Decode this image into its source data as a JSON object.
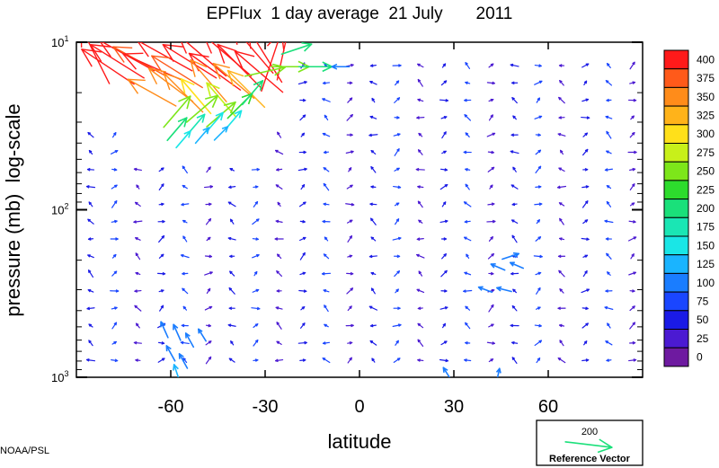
{
  "chart_data": {
    "type": "vector-field",
    "title": "EPFlux  1 day average  21 July       2011",
    "xlabel": "latitude",
    "ylabel": "pressure (mb)  log-scale",
    "xlim": [
      -90,
      90
    ],
    "ylim": [
      1000,
      10
    ],
    "yscale": "log",
    "x_ticks": [
      -60,
      -30,
      0,
      30,
      60
    ],
    "x_tick_labels": [
      "-60",
      "-30",
      "0",
      "30",
      "60"
    ],
    "y_ticks": [
      {
        "value": 10,
        "base": "10",
        "exp": "1"
      },
      {
        "value": 100,
        "base": "10",
        "exp": "2"
      },
      {
        "value": 1000,
        "base": "10",
        "exp": "3"
      }
    ],
    "colorbar": {
      "levels": [
        "400",
        "375",
        "350",
        "325",
        "300",
        "275",
        "250",
        "225",
        "200",
        "175",
        "150",
        "125",
        "100",
        "75",
        "50",
        "25",
        "0"
      ],
      "colors": [
        "#ff1a1a",
        "#ff5a1a",
        "#ff8c1a",
        "#ffb31a",
        "#ffe01a",
        "#c8f01a",
        "#7de61a",
        "#2ddc2d",
        "#1ae07a",
        "#1ae6b4",
        "#1ae6e6",
        "#1ab4ff",
        "#1a7dff",
        "#1a46ff",
        "#1a1ae6",
        "#4b1ad2",
        "#6e1aa0"
      ]
    },
    "vectors": [
      {
        "lat": -84,
        "p": 12,
        "u": -0.4,
        "v": 0.8,
        "mag": 400
      },
      {
        "lat": -80,
        "p": 14,
        "u": -0.9,
        "v": 0.6,
        "mag": 400
      },
      {
        "lat": -77,
        "p": 13,
        "u": -0.8,
        "v": 0.5,
        "mag": 400
      },
      {
        "lat": -74,
        "p": 12,
        "u": -0.9,
        "v": 0.5,
        "mag": 400
      },
      {
        "lat": -70,
        "p": 13,
        "u": -0.9,
        "v": 0.5,
        "mag": 380
      },
      {
        "lat": -66,
        "p": 14,
        "u": -0.9,
        "v": 0.4,
        "mag": 400
      },
      {
        "lat": -62,
        "p": 12,
        "u": -0.9,
        "v": 0.5,
        "mag": 400
      },
      {
        "lat": -58,
        "p": 15,
        "u": -0.8,
        "v": 0.5,
        "mag": 380
      },
      {
        "lat": -54,
        "p": 13,
        "u": -0.8,
        "v": 0.5,
        "mag": 400
      },
      {
        "lat": -50,
        "p": 12,
        "u": -0.7,
        "v": 0.6,
        "mag": 400
      },
      {
        "lat": -46,
        "p": 15,
        "u": -0.7,
        "v": 0.5,
        "mag": 400
      },
      {
        "lat": -42,
        "p": 12,
        "u": -0.7,
        "v": 0.6,
        "mag": 400
      },
      {
        "lat": -38,
        "p": 14,
        "u": -0.6,
        "v": 0.6,
        "mag": 400
      },
      {
        "lat": -34,
        "p": 11,
        "u": -0.6,
        "v": 0.7,
        "mag": 400
      },
      {
        "lat": -32,
        "p": 15,
        "u": -0.7,
        "v": 0.6,
        "mag": 400
      },
      {
        "lat": -30,
        "p": 12,
        "u": -0.5,
        "v": 0.8,
        "mag": 400
      },
      {
        "lat": -28,
        "p": 13,
        "u": 0.3,
        "v": 0.9,
        "mag": 400
      },
      {
        "lat": -24,
        "p": 11,
        "u": 0.2,
        "v": 0.9,
        "mag": 400
      },
      {
        "lat": -60,
        "p": 18,
        "u": -0.8,
        "v": 0.6,
        "mag": 350
      },
      {
        "lat": -66,
        "p": 20,
        "u": -0.9,
        "v": 0.5,
        "mag": 350
      },
      {
        "lat": -56,
        "p": 20,
        "u": -0.7,
        "v": 0.7,
        "mag": 350
      },
      {
        "lat": -48,
        "p": 17,
        "u": -0.6,
        "v": 0.7,
        "mag": 350
      },
      {
        "lat": -40,
        "p": 17,
        "u": -0.7,
        "v": 0.6,
        "mag": 340
      },
      {
        "lat": -36,
        "p": 19,
        "u": -0.6,
        "v": 0.6,
        "mag": 330
      },
      {
        "lat": -52,
        "p": 21,
        "u": -0.6,
        "v": 0.7,
        "mag": 290
      },
      {
        "lat": -44,
        "p": 22,
        "u": -0.6,
        "v": 0.7,
        "mag": 280
      },
      {
        "lat": -30,
        "p": 15,
        "u": 0.9,
        "v": 0.2,
        "mag": 260
      },
      {
        "lat": -22,
        "p": 14,
        "u": 0.9,
        "v": 0.0,
        "mag": 240
      },
      {
        "lat": -14,
        "p": 14,
        "u": 0.9,
        "v": 0.0,
        "mag": 210
      },
      {
        "lat": -20,
        "p": 11,
        "u": 0.9,
        "v": 0.3,
        "mag": 200
      },
      {
        "lat": -6,
        "p": 14,
        "u": -0.9,
        "v": 0.0,
        "mag": 110
      },
      {
        "lat": -58,
        "p": 26,
        "u": 0.6,
        "v": 0.7,
        "mag": 260
      },
      {
        "lat": -50,
        "p": 25,
        "u": 0.7,
        "v": 0.6,
        "mag": 260
      },
      {
        "lat": -44,
        "p": 27,
        "u": 0.7,
        "v": 0.6,
        "mag": 240
      },
      {
        "lat": -38,
        "p": 24,
        "u": 0.6,
        "v": 0.6,
        "mag": 220
      },
      {
        "lat": -34,
        "p": 20,
        "u": 0.6,
        "v": 0.7,
        "mag": 200
      },
      {
        "lat": -58,
        "p": 33,
        "u": 0.6,
        "v": 0.7,
        "mag": 190
      },
      {
        "lat": -52,
        "p": 31,
        "u": 0.6,
        "v": 0.7,
        "mag": 170
      },
      {
        "lat": -46,
        "p": 30,
        "u": 0.6,
        "v": 0.7,
        "mag": 160
      },
      {
        "lat": -40,
        "p": 29,
        "u": 0.6,
        "v": 0.7,
        "mag": 150
      },
      {
        "lat": -56,
        "p": 38,
        "u": 0.6,
        "v": 0.7,
        "mag": 140
      },
      {
        "lat": -50,
        "p": 36,
        "u": 0.6,
        "v": 0.7,
        "mag": 130
      },
      {
        "lat": -44,
        "p": 35,
        "u": 0.6,
        "v": 0.6,
        "mag": 120
      },
      {
        "lat": 48,
        "p": 190,
        "u": 0.9,
        "v": 0.3,
        "mag": 110
      },
      {
        "lat": 44,
        "p": 220,
        "u": -0.7,
        "v": 0.3,
        "mag": 95
      },
      {
        "lat": 50,
        "p": 215,
        "u": -0.7,
        "v": 0.3,
        "mag": 90
      },
      {
        "lat": 40,
        "p": 300,
        "u": -0.8,
        "v": 0.3,
        "mag": 90
      },
      {
        "lat": 46,
        "p": 300,
        "u": -0.8,
        "v": 0.2,
        "mag": 95
      },
      {
        "lat": -62,
        "p": 520,
        "u": -0.4,
        "v": 0.9,
        "mag": 110
      },
      {
        "lat": -58,
        "p": 540,
        "u": -0.4,
        "v": 0.9,
        "mag": 110
      },
      {
        "lat": -54,
        "p": 600,
        "u": -0.5,
        "v": 0.9,
        "mag": 100
      },
      {
        "lat": -50,
        "p": 560,
        "u": -0.5,
        "v": 0.8,
        "mag": 90
      },
      {
        "lat": -60,
        "p": 720,
        "u": -0.5,
        "v": 0.9,
        "mag": 110
      },
      {
        "lat": -56,
        "p": 800,
        "u": -0.5,
        "v": 0.9,
        "mag": 105
      },
      {
        "lat": -58,
        "p": 950,
        "u": -0.3,
        "v": 0.9,
        "mag": 120
      },
      {
        "lat": 28,
        "p": 960,
        "u": -0.5,
        "v": 0.8,
        "mag": 100
      },
      {
        "lat": 44,
        "p": 980,
        "u": 0.2,
        "v": 0.9,
        "mag": 95
      }
    ],
    "background_vectors": "small blue vectors (~25-75) on a regular lat-pressure grid covering the rest of the domain",
    "reference_vector": {
      "value": "200",
      "label": "Reference Vector",
      "color": "#1ae07a"
    },
    "credit": "NOAA/PSL"
  }
}
